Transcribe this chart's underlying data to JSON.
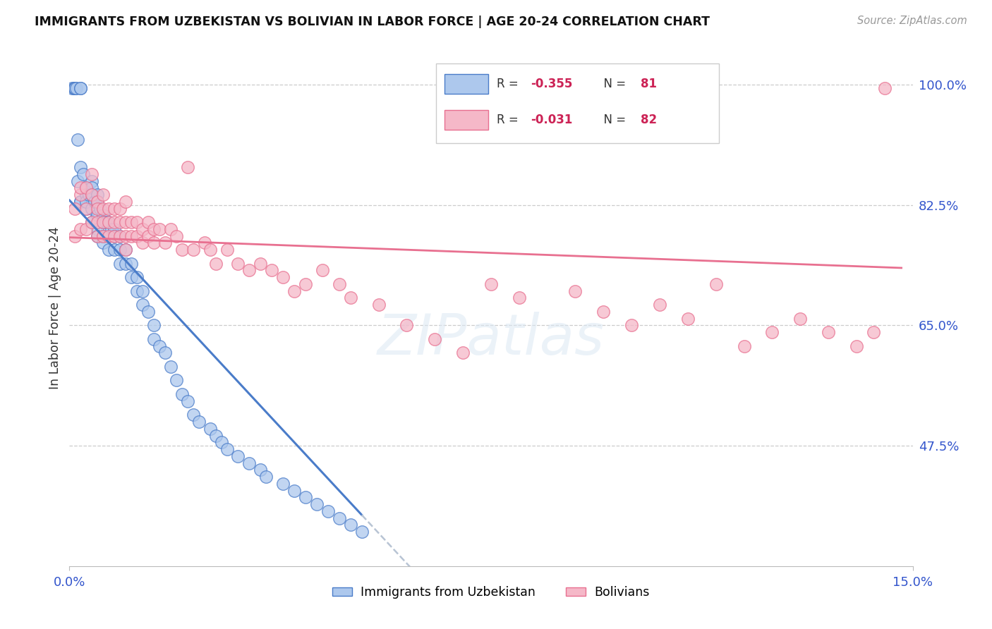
{
  "title": "IMMIGRANTS FROM UZBEKISTAN VS BOLIVIAN IN LABOR FORCE | AGE 20-24 CORRELATION CHART",
  "source": "Source: ZipAtlas.com",
  "ylabel": "In Labor Force | Age 20-24",
  "R1": -0.355,
  "N1": 81,
  "R2": -0.031,
  "N2": 82,
  "color_uzbek": "#adc8ed",
  "color_bolivian": "#f5b8c8",
  "color_line_uzbek": "#4a7cc9",
  "color_line_bolivian": "#e87090",
  "color_dashed": "#b8c4d4",
  "watermark": "ZIPatlas",
  "xlim": [
    0.0,
    0.15
  ],
  "ylim": [
    0.3,
    1.05
  ],
  "yticks": [
    0.475,
    0.65,
    0.825,
    1.0
  ],
  "ytick_labels": [
    "47.5%",
    "65.0%",
    "82.5%",
    "100.0%"
  ],
  "xticks": [
    0.0,
    0.15
  ],
  "xtick_labels": [
    "0.0%",
    "15.0%"
  ],
  "legend1_label": "Immigrants from Uzbekistan",
  "legend2_label": "Bolivians",
  "uzbek_x": [
    0.0005,
    0.0008,
    0.001,
    0.001,
    0.001,
    0.0012,
    0.0015,
    0.0015,
    0.002,
    0.002,
    0.002,
    0.002,
    0.002,
    0.0025,
    0.003,
    0.003,
    0.003,
    0.003,
    0.0035,
    0.004,
    0.004,
    0.004,
    0.004,
    0.004,
    0.0045,
    0.005,
    0.005,
    0.005,
    0.005,
    0.005,
    0.0055,
    0.006,
    0.006,
    0.006,
    0.006,
    0.0065,
    0.007,
    0.007,
    0.007,
    0.0075,
    0.008,
    0.008,
    0.008,
    0.009,
    0.009,
    0.009,
    0.01,
    0.01,
    0.011,
    0.011,
    0.012,
    0.012,
    0.013,
    0.013,
    0.014,
    0.015,
    0.015,
    0.016,
    0.017,
    0.018,
    0.019,
    0.02,
    0.021,
    0.022,
    0.023,
    0.025,
    0.026,
    0.027,
    0.028,
    0.03,
    0.032,
    0.034,
    0.035,
    0.038,
    0.04,
    0.042,
    0.044,
    0.046,
    0.048,
    0.05,
    0.052
  ],
  "uzbek_y": [
    0.995,
    0.995,
    0.995,
    0.995,
    0.995,
    0.995,
    0.86,
    0.92,
    0.995,
    0.995,
    0.88,
    0.83,
    0.83,
    0.87,
    0.85,
    0.84,
    0.82,
    0.83,
    0.84,
    0.86,
    0.85,
    0.84,
    0.82,
    0.8,
    0.83,
    0.84,
    0.83,
    0.81,
    0.79,
    0.78,
    0.82,
    0.81,
    0.8,
    0.78,
    0.77,
    0.8,
    0.8,
    0.78,
    0.76,
    0.79,
    0.79,
    0.78,
    0.76,
    0.78,
    0.76,
    0.74,
    0.76,
    0.74,
    0.74,
    0.72,
    0.72,
    0.7,
    0.7,
    0.68,
    0.67,
    0.65,
    0.63,
    0.62,
    0.61,
    0.59,
    0.57,
    0.55,
    0.54,
    0.52,
    0.51,
    0.5,
    0.49,
    0.48,
    0.47,
    0.46,
    0.45,
    0.44,
    0.43,
    0.42,
    0.41,
    0.4,
    0.39,
    0.38,
    0.37,
    0.36,
    0.35
  ],
  "bolivian_x": [
    0.001,
    0.001,
    0.002,
    0.002,
    0.002,
    0.003,
    0.003,
    0.003,
    0.004,
    0.004,
    0.004,
    0.005,
    0.005,
    0.005,
    0.005,
    0.006,
    0.006,
    0.006,
    0.006,
    0.007,
    0.007,
    0.007,
    0.008,
    0.008,
    0.008,
    0.009,
    0.009,
    0.009,
    0.01,
    0.01,
    0.01,
    0.01,
    0.011,
    0.011,
    0.012,
    0.012,
    0.013,
    0.013,
    0.014,
    0.014,
    0.015,
    0.015,
    0.016,
    0.017,
    0.018,
    0.019,
    0.02,
    0.021,
    0.022,
    0.024,
    0.025,
    0.026,
    0.028,
    0.03,
    0.032,
    0.034,
    0.036,
    0.038,
    0.04,
    0.042,
    0.045,
    0.048,
    0.05,
    0.055,
    0.06,
    0.065,
    0.07,
    0.075,
    0.08,
    0.09,
    0.095,
    0.1,
    0.105,
    0.11,
    0.115,
    0.12,
    0.125,
    0.13,
    0.135,
    0.14,
    0.143,
    0.145
  ],
  "bolivian_y": [
    0.82,
    0.78,
    0.84,
    0.79,
    0.85,
    0.82,
    0.79,
    0.85,
    0.84,
    0.8,
    0.87,
    0.83,
    0.82,
    0.8,
    0.78,
    0.84,
    0.82,
    0.8,
    0.78,
    0.82,
    0.8,
    0.78,
    0.82,
    0.8,
    0.78,
    0.82,
    0.8,
    0.78,
    0.83,
    0.8,
    0.78,
    0.76,
    0.8,
    0.78,
    0.8,
    0.78,
    0.79,
    0.77,
    0.8,
    0.78,
    0.79,
    0.77,
    0.79,
    0.77,
    0.79,
    0.78,
    0.76,
    0.88,
    0.76,
    0.77,
    0.76,
    0.74,
    0.76,
    0.74,
    0.73,
    0.74,
    0.73,
    0.72,
    0.7,
    0.71,
    0.73,
    0.71,
    0.69,
    0.68,
    0.65,
    0.63,
    0.61,
    0.71,
    0.69,
    0.7,
    0.67,
    0.65,
    0.68,
    0.66,
    0.71,
    0.62,
    0.64,
    0.66,
    0.64,
    0.62,
    0.64,
    0.995
  ]
}
